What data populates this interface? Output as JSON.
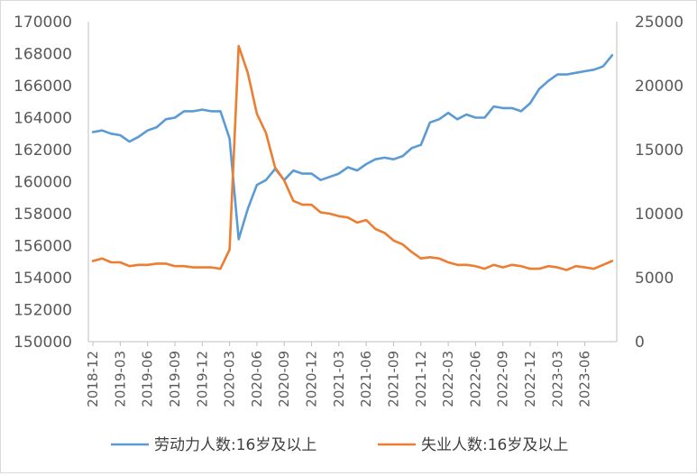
{
  "chart_data": {
    "type": "line",
    "title": "",
    "x": [
      "2018-12",
      "2019-01",
      "2019-02",
      "2019-03",
      "2019-04",
      "2019-05",
      "2019-06",
      "2019-07",
      "2019-08",
      "2019-09",
      "2019-10",
      "2019-11",
      "2019-12",
      "2020-01",
      "2020-02",
      "2020-03",
      "2020-04",
      "2020-05",
      "2020-06",
      "2020-07",
      "2020-08",
      "2020-09",
      "2020-10",
      "2020-11",
      "2020-12",
      "2021-01",
      "2021-02",
      "2021-03",
      "2021-04",
      "2021-05",
      "2021-06",
      "2021-07",
      "2021-08",
      "2021-09",
      "2021-10",
      "2021-11",
      "2021-12",
      "2022-01",
      "2022-02",
      "2022-03",
      "2022-04",
      "2022-05",
      "2022-06",
      "2022-07",
      "2022-08",
      "2022-09",
      "2022-10",
      "2022-11",
      "2022-12",
      "2023-01",
      "2023-02",
      "2023-03",
      "2023-04",
      "2023-05",
      "2023-06",
      "2023-07",
      "2023-08",
      "2023-09"
    ],
    "x_tick_labels": [
      "2018-12",
      "2019-03",
      "2019-06",
      "2019-09",
      "2019-12",
      "2020-03",
      "2020-06",
      "2020-09",
      "2020-12",
      "2021-03",
      "2021-06",
      "2021-09",
      "2021-12",
      "2022-03",
      "2022-06",
      "2022-09",
      "2022-12",
      "2023-03",
      "2023-06"
    ],
    "y_left": {
      "min": 150000,
      "max": 170000,
      "step": 2000,
      "ticks": [
        "150000",
        "152000",
        "154000",
        "156000",
        "158000",
        "160000",
        "162000",
        "164000",
        "166000",
        "168000",
        "170000"
      ]
    },
    "y_right": {
      "min": 0,
      "max": 25000,
      "step": 5000,
      "ticks": [
        "0",
        "5000",
        "10000",
        "15000",
        "20000",
        "25000"
      ]
    },
    "legend_position": "bottom",
    "grid": false,
    "series": [
      {
        "name": "劳动力人数:16岁及以上",
        "axis": "left",
        "color": "#5b9bd5",
        "values": [
          163100,
          163200,
          163000,
          162900,
          162500,
          162800,
          163200,
          163400,
          163900,
          164000,
          164400,
          164400,
          164500,
          164400,
          164400,
          162700,
          156400,
          158300,
          159800,
          160100,
          160800,
          160100,
          160700,
          160500,
          160500,
          160100,
          160300,
          160500,
          160900,
          160700,
          161100,
          161400,
          161500,
          161400,
          161600,
          162100,
          162300,
          163700,
          163900,
          164300,
          163900,
          164200,
          164000,
          164000,
          164700,
          164600,
          164600,
          164400,
          164900,
          165800,
          166300,
          166700,
          166700,
          166800,
          166900,
          167000,
          167200,
          167900
        ]
      },
      {
        "name": "失业人数:16岁及以上",
        "axis": "right",
        "color": "#ed7d31",
        "values": [
          6300,
          6500,
          6200,
          6200,
          5900,
          6000,
          6000,
          6100,
          6100,
          5900,
          5900,
          5800,
          5800,
          5800,
          5700,
          7200,
          23100,
          21000,
          17800,
          16300,
          13600,
          12600,
          11000,
          10700,
          10700,
          10100,
          10000,
          9800,
          9700,
          9300,
          9500,
          8800,
          8500,
          7900,
          7600,
          7000,
          6500,
          6600,
          6500,
          6200,
          6000,
          6000,
          5900,
          5700,
          6000,
          5800,
          6000,
          5900,
          5700,
          5700,
          5900,
          5800,
          5600,
          5900,
          5800,
          5700,
          6000,
          6300
        ]
      }
    ]
  }
}
